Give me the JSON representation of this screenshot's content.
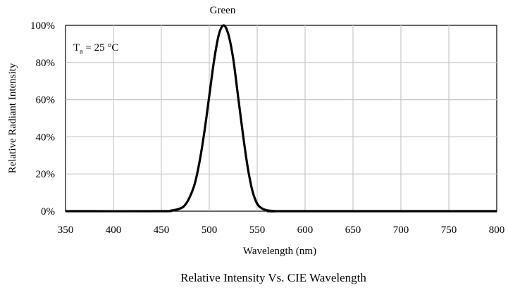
{
  "chart_data": {
    "type": "line",
    "top_label": "Green",
    "title": "Relative Intensity Vs. CIE Wavelength",
    "xlabel": "Wavelength (nm)",
    "ylabel": "Relative  Radiant Intensity",
    "annotation": {
      "main": "T",
      "sub": "a",
      "rest": " = 25 °C"
    },
    "xlim": [
      350,
      800
    ],
    "ylim": [
      0,
      100
    ],
    "x_ticks": [
      350,
      400,
      450,
      500,
      550,
      600,
      650,
      700,
      750,
      800
    ],
    "x_tick_labels": [
      "350",
      "400",
      "450",
      "500",
      "550",
      "600",
      "650",
      "700",
      "750",
      "800"
    ],
    "y_ticks": [
      0,
      20,
      40,
      60,
      80,
      100
    ],
    "y_tick_labels": [
      "0%",
      "20%",
      "40%",
      "60%",
      "80%",
      "100%"
    ],
    "grid": true,
    "series": [
      {
        "color": "#000000",
        "x": [
          350,
          450,
          460,
          470,
          475,
          480,
          485,
          490,
          495,
          500,
          505,
          510,
          515,
          520,
          525,
          530,
          535,
          540,
          545,
          550,
          555,
          560,
          570,
          580,
          800
        ],
        "y": [
          0,
          0,
          0.3,
          1.5,
          3.5,
          8,
          15,
          27,
          43,
          62,
          81,
          95,
          100,
          95,
          82,
          62,
          42,
          24,
          11,
          4,
          1.5,
          0.5,
          0,
          0,
          0
        ]
      }
    ]
  }
}
